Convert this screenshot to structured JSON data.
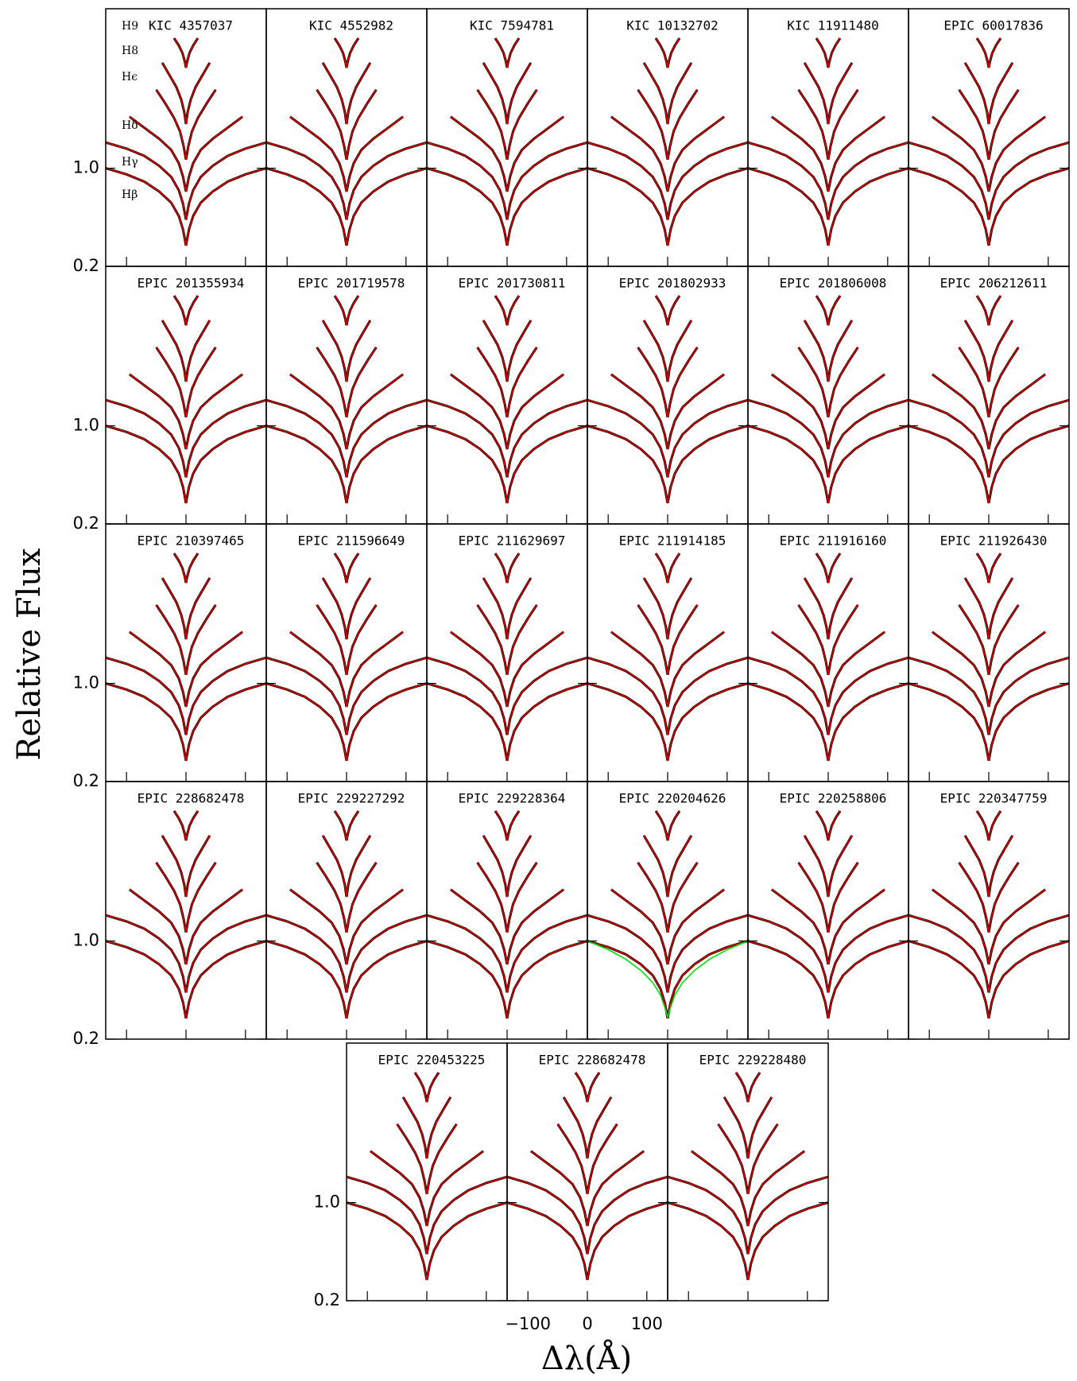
{
  "chart_data": {
    "type": "line",
    "ylabel": "Relative Flux",
    "xlabel": "Δλ(Å)",
    "xlim": [
      -135,
      135
    ],
    "ylim": [
      0.2,
      2.3
    ],
    "yticks": [
      0.2,
      {
        "value": 1,
        "label": "1.0"
      }
    ],
    "xticks": [
      {
        "value": -100,
        "label": "−100"
      },
      0,
      100
    ],
    "observed_color": "#000000",
    "series": [
      {
        "name": "H9",
        "color": "#e00000",
        "x": [
          -20,
          -12,
          -6,
          -2,
          0,
          2,
          6,
          12,
          20
        ],
        "values": [
          2.06,
          2.0,
          1.94,
          1.87,
          1.82,
          1.87,
          1.94,
          2.0,
          2.06
        ]
      },
      {
        "name": "H8",
        "color": "#e00000",
        "x": [
          -40,
          -28,
          -16,
          -8,
          -3,
          0,
          3,
          8,
          16,
          28,
          40
        ],
        "values": [
          1.86,
          1.76,
          1.66,
          1.56,
          1.46,
          1.36,
          1.46,
          1.56,
          1.66,
          1.76,
          1.86
        ]
      },
      {
        "name": "Hϵ",
        "color": "#e00000",
        "x": [
          -50,
          -35,
          -20,
          -10,
          -4,
          0,
          4,
          10,
          20,
          35,
          50
        ],
        "values": [
          1.64,
          1.53,
          1.41,
          1.3,
          1.18,
          1.07,
          1.18,
          1.3,
          1.41,
          1.53,
          1.64
        ]
      },
      {
        "name": "Hδ",
        "color": "#e00000",
        "x": [
          -95,
          -70,
          -45,
          -25,
          -12,
          -5,
          0,
          5,
          12,
          25,
          45,
          70,
          95
        ],
        "values": [
          1.42,
          1.33,
          1.24,
          1.15,
          1.04,
          0.93,
          0.81,
          0.93,
          1.04,
          1.15,
          1.24,
          1.33,
          1.42
        ]
      },
      {
        "name": "Hγ",
        "color": "#e00000",
        "x": [
          -135,
          -100,
          -70,
          -45,
          -25,
          -12,
          -5,
          0,
          5,
          12,
          25,
          45,
          70,
          100,
          135
        ],
        "values": [
          1.21,
          1.16,
          1.1,
          1.02,
          0.93,
          0.82,
          0.71,
          0.58,
          0.71,
          0.82,
          0.93,
          1.02,
          1.1,
          1.16,
          1.21
        ]
      },
      {
        "name": "Hβ",
        "color": "#e00000",
        "x": [
          -135,
          -100,
          -70,
          -45,
          -25,
          -12,
          -5,
          0,
          5,
          12,
          25,
          45,
          70,
          100,
          135
        ],
        "values": [
          1.0,
          0.95,
          0.89,
          0.81,
          0.72,
          0.61,
          0.5,
          0.37,
          0.5,
          0.61,
          0.72,
          0.81,
          0.89,
          0.95,
          1.0
        ]
      }
    ],
    "panels": [
      {
        "title": "KIC 4357037"
      },
      {
        "title": "KIC 4552982"
      },
      {
        "title": "KIC 7594781"
      },
      {
        "title": "KIC 10132702"
      },
      {
        "title": "KIC 11911480"
      },
      {
        "title": "EPIC 60017836"
      },
      {
        "title": "EPIC 201355934"
      },
      {
        "title": "EPIC 201719578"
      },
      {
        "title": "EPIC 201730811"
      },
      {
        "title": "EPIC 201802933"
      },
      {
        "title": "EPIC 201806008"
      },
      {
        "title": "EPIC 206212611"
      },
      {
        "title": "EPIC 210397465"
      },
      {
        "title": "EPIC 211596649"
      },
      {
        "title": "EPIC 211629697"
      },
      {
        "title": "EPIC 211914185"
      },
      {
        "title": "EPIC 211916160"
      },
      {
        "title": "EPIC 211926430"
      },
      {
        "title": "EPIC 228682478"
      },
      {
        "title": "EPIC 229227292"
      },
      {
        "title": "EPIC 229228364"
      },
      {
        "title": "EPIC 220204626",
        "comparison": {
          "color": "#00e000",
          "x": [
            -135,
            -100,
            -70,
            -45,
            -25,
            -12,
            -5,
            0,
            5,
            12,
            25,
            45,
            70,
            100,
            135
          ],
          "values": [
            1.0,
            0.93,
            0.85,
            0.76,
            0.66,
            0.56,
            0.46,
            0.38,
            0.46,
            0.56,
            0.66,
            0.76,
            0.85,
            0.93,
            1.0
          ]
        }
      },
      {
        "title": "EPIC 220258806"
      },
      {
        "title": "EPIC 220347759"
      },
      {
        "title": "EPIC 220453225"
      },
      {
        "title": "EPIC 228682478"
      },
      {
        "title": "EPIC 229228480"
      }
    ]
  }
}
